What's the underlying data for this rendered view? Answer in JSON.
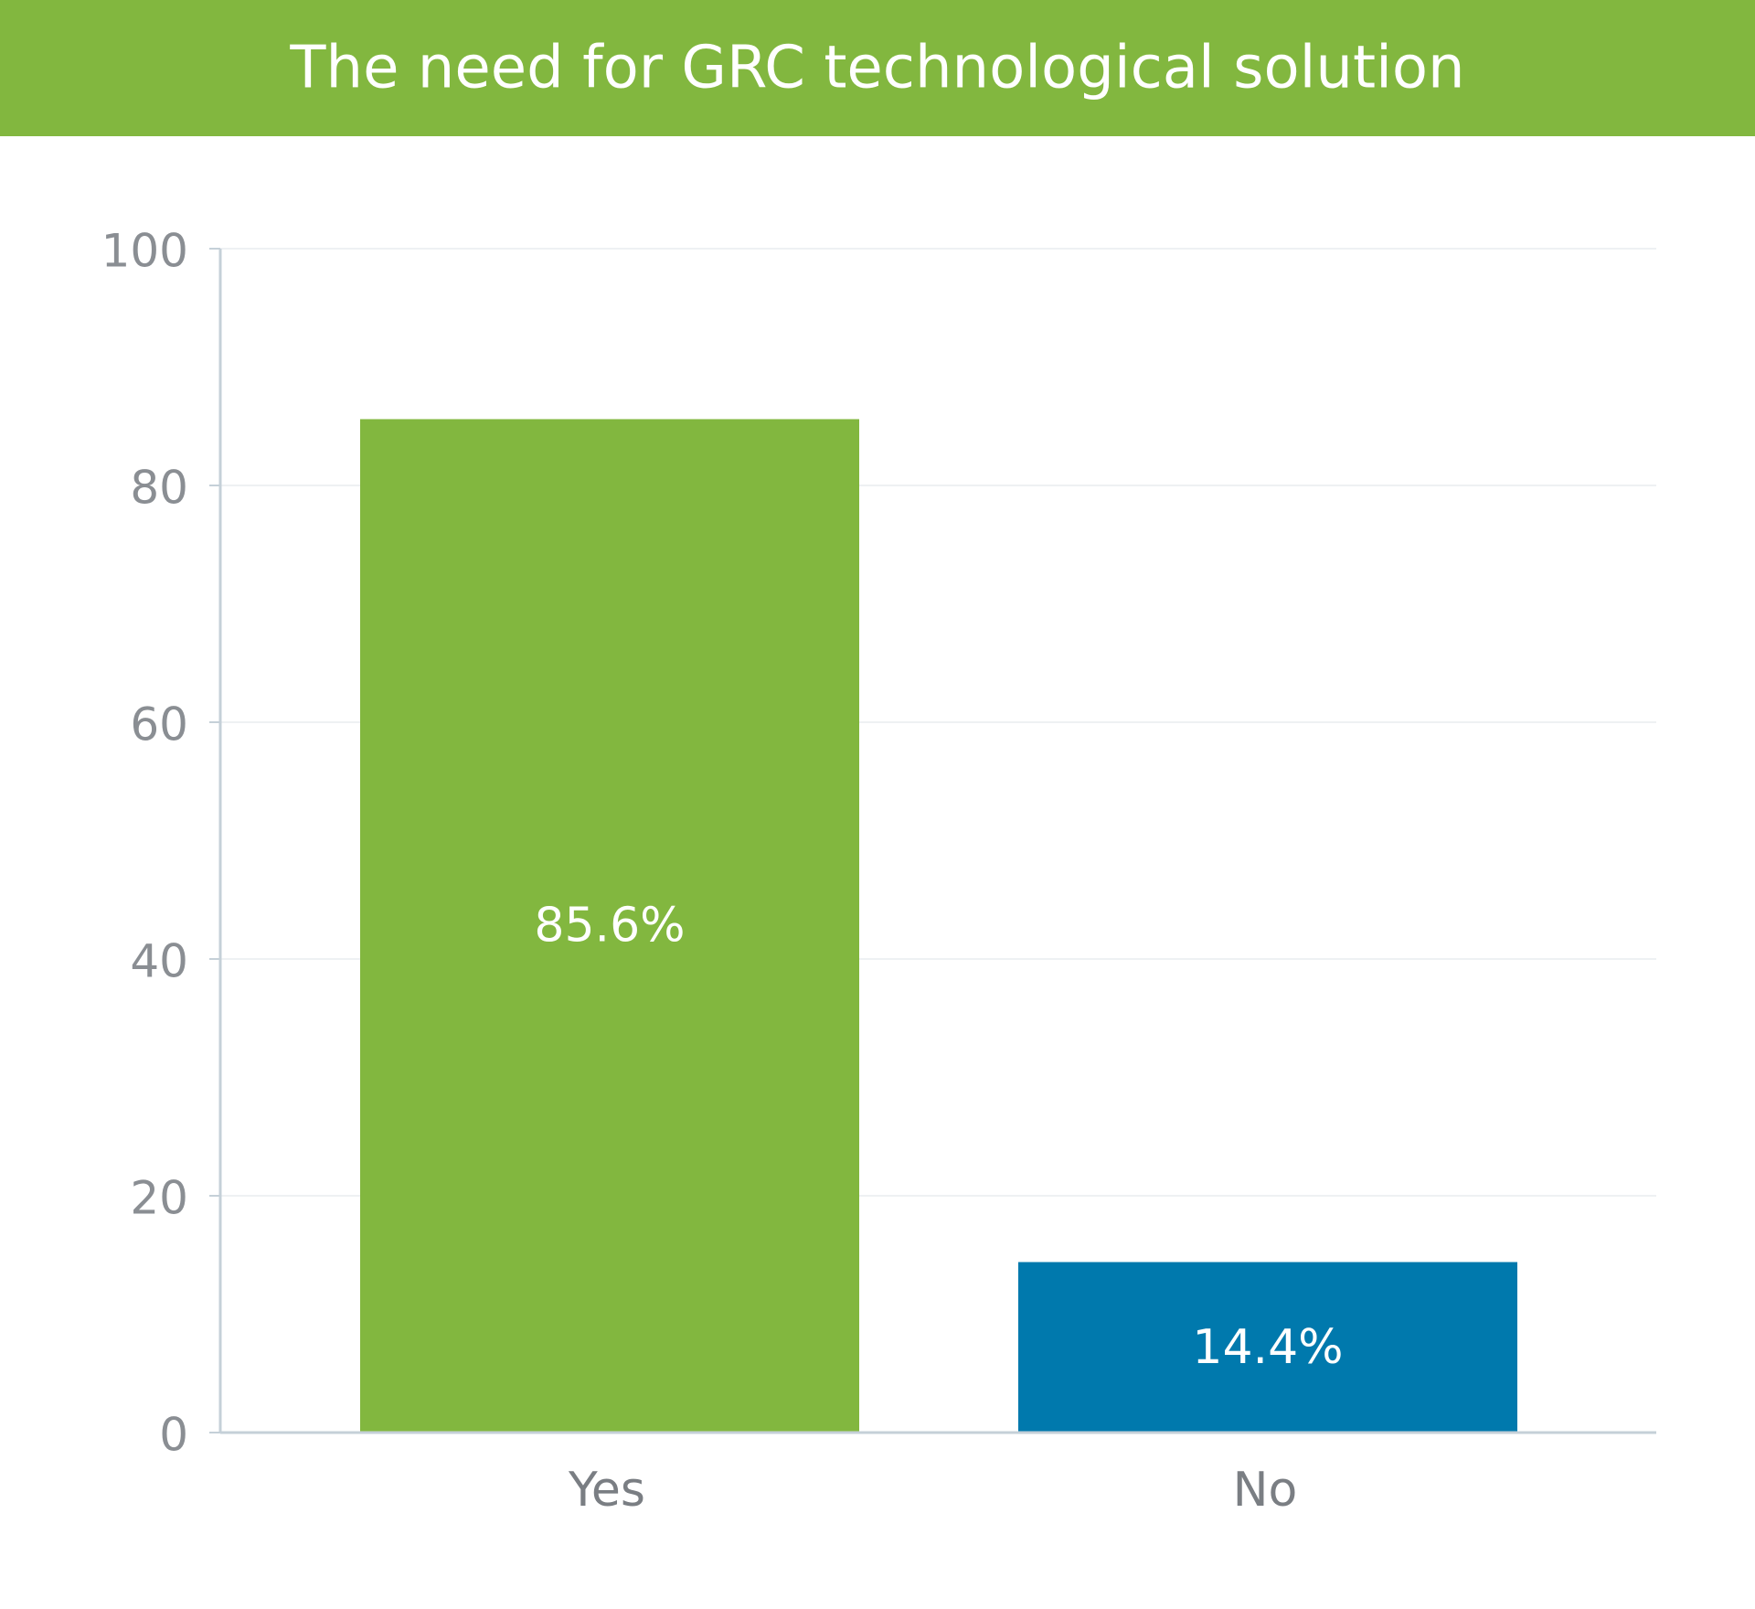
{
  "chart_data": {
    "type": "bar",
    "title": "The need for GRC technological solution",
    "categories": [
      "Yes",
      "No"
    ],
    "values": [
      85.6,
      14.4
    ],
    "value_labels": [
      "85.6%",
      "14.4%"
    ],
    "colors": [
      "#82b73f",
      "#0079ad"
    ],
    "header_color": "#82b73f",
    "ylim": [
      0,
      100
    ],
    "yticks": [
      0,
      20,
      40,
      60,
      80,
      100
    ],
    "grid": true
  }
}
